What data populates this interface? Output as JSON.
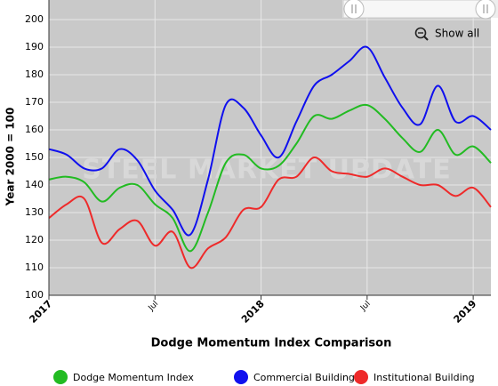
{
  "chart_data": {
    "type": "line",
    "title": "Dodge Momentum Index Comparison",
    "y_label": "Year 2000 = 100",
    "watermark": "STEEL MARKET UPDATE",
    "show_all_label": "Show all",
    "x": [
      "2017-01",
      "2017-02",
      "2017-03",
      "2017-04",
      "2017-05",
      "2017-06",
      "2017-07",
      "2017-08",
      "2017-09",
      "2017-10",
      "2017-11",
      "2017-12",
      "2018-01",
      "2018-02",
      "2018-03",
      "2018-04",
      "2018-05",
      "2018-06",
      "2018-07",
      "2018-08",
      "2018-09",
      "2018-10",
      "2018-11",
      "2018-12",
      "2019-01",
      "2019-02"
    ],
    "xlim": [
      "2017-01",
      "2019-02"
    ],
    "xticks": [
      {
        "value": "2017-01",
        "label": "2017"
      },
      {
        "value": "2017-07",
        "label": "Jul"
      },
      {
        "value": "2018-01",
        "label": "2018"
      },
      {
        "value": "2018-07",
        "label": "Jul"
      },
      {
        "value": "2019-01",
        "label": "2019"
      }
    ],
    "ylim": [
      100,
      200
    ],
    "yticks": [
      100,
      110,
      120,
      130,
      140,
      150,
      160,
      170,
      180,
      190,
      200
    ],
    "grid": true,
    "legend": "bottom",
    "series": [
      {
        "name": "Dodge Momentum Index",
        "color": "#22bb22",
        "values": [
          142,
          143,
          141,
          134,
          139,
          140,
          133,
          128,
          116,
          130,
          148,
          151,
          146,
          147,
          155,
          165,
          164,
          167,
          169,
          164,
          157,
          152,
          160,
          151,
          154,
          148
        ]
      },
      {
        "name": "Commercial Building",
        "color": "#1010ee",
        "values": [
          153,
          151,
          146,
          146,
          153,
          149,
          138,
          131,
          122,
          142,
          169,
          168,
          158,
          150,
          163,
          176,
          180,
          185,
          190,
          179,
          168,
          162,
          176,
          163,
          165,
          160
        ]
      },
      {
        "name": "Institutional Building",
        "color": "#ee2a2a",
        "values": [
          128,
          133,
          135,
          119,
          124,
          127,
          118,
          123,
          110,
          117,
          121,
          131,
          132,
          142,
          143,
          150,
          145,
          144,
          143,
          146,
          143,
          140,
          140,
          136,
          139,
          132
        ]
      }
    ]
  }
}
